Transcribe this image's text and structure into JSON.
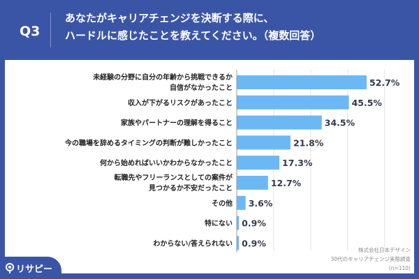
{
  "header": {
    "q_label": "Q3",
    "title_line1": "あなたがキャリアチェンジを決断する際に、",
    "title_line2": "ハードルに感じたことを教えてください。（複数回答）"
  },
  "source": {
    "line1": "株式会社日本デザイン",
    "line2": "30代のキャリアチェンジ実態調査",
    "line3": "(n=110)"
  },
  "logo": {
    "text": "リサピー",
    "icon": "map-pin-icon"
  },
  "colors": {
    "background": "#3b55a6",
    "bar": "#6cb8f5"
  },
  "chart_data": {
    "type": "bar",
    "orientation": "horizontal",
    "grid": true,
    "xlim": [
      0,
      60
    ],
    "categories": [
      [
        "未経験の分野に自分の年齢から挑戦できるか",
        "自信がなかったこと"
      ],
      [
        "収入が下がるリスクがあったこと"
      ],
      [
        "家族やパートナーの理解を得ること"
      ],
      [
        "今の職場を辞めるタイミングの判断が難しかったこと"
      ],
      [
        "何から始めればいいかわからなかったこと"
      ],
      [
        "転職先やフリーランスとしての案件が",
        "見つかるか不安だったこと"
      ],
      [
        "その他"
      ],
      [
        "特にない"
      ],
      [
        "わからない/答えられない"
      ]
    ],
    "values": [
      52.7,
      45.5,
      34.5,
      21.8,
      17.3,
      12.7,
      3.6,
      0.9,
      0.9
    ],
    "data_labels": [
      "52.7%",
      "45.5%",
      "34.5%",
      "21.8%",
      "17.3%",
      "12.7%",
      "3.6%",
      "0.9%",
      "0.9%"
    ]
  }
}
